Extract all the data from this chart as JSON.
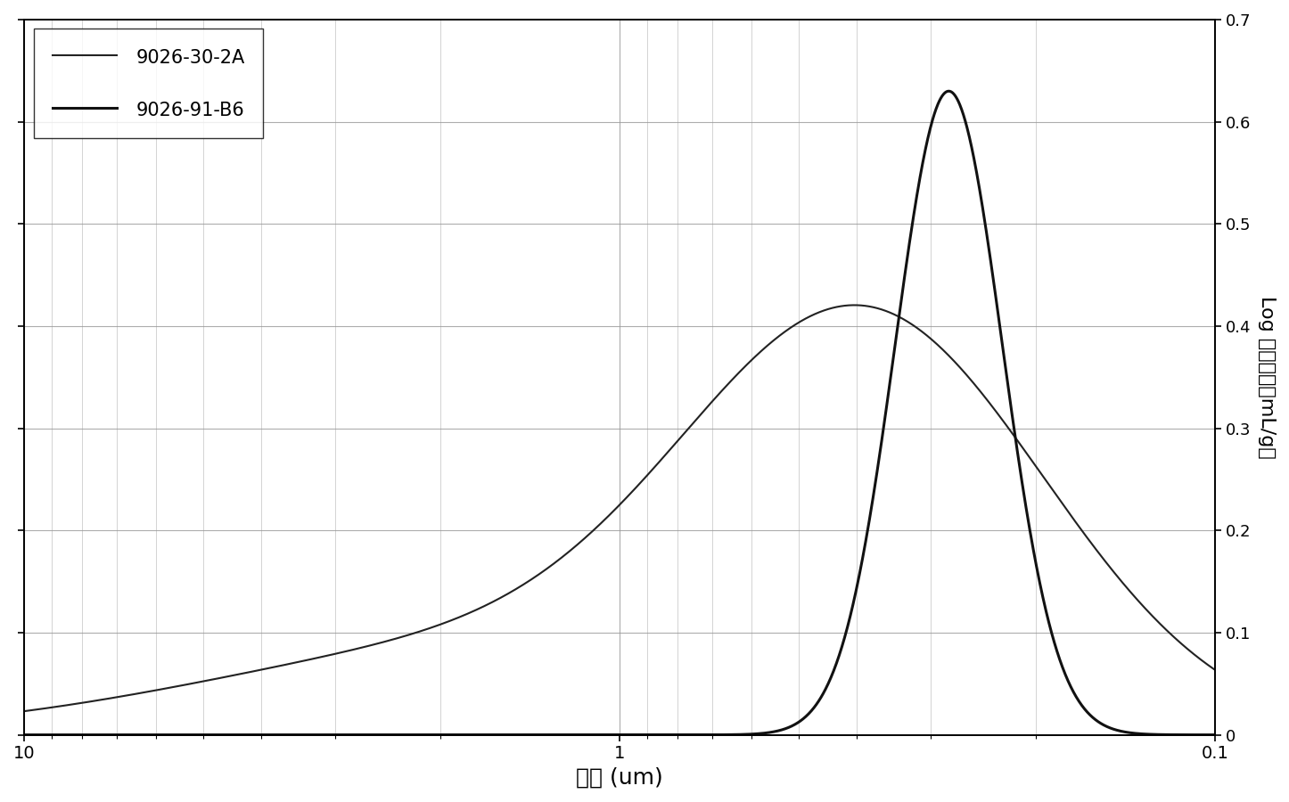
{
  "title": "",
  "xlabel": "直径 (um)",
  "ylabel": "Log 微分侵扚（mL/g）",
  "xlim_left": 10,
  "xlim_right": 0.1,
  "ylim": [
    0,
    0.7
  ],
  "yticks": [
    0,
    0.1,
    0.2,
    0.3,
    0.4,
    0.5,
    0.6,
    0.7
  ],
  "line1_label": "9026-30-2A",
  "line2_label": "9026-91-B6",
  "line1_color": "#222222",
  "line2_color": "#111111",
  "background_color": "#ffffff",
  "grid_color": "#999999",
  "line1_peak_x": 0.38,
  "line1_peak_y": 0.375,
  "line1_sigma": 0.3,
  "line2_peak_x": 0.28,
  "line2_peak_y": 0.63,
  "line2_sigma": 0.09
}
